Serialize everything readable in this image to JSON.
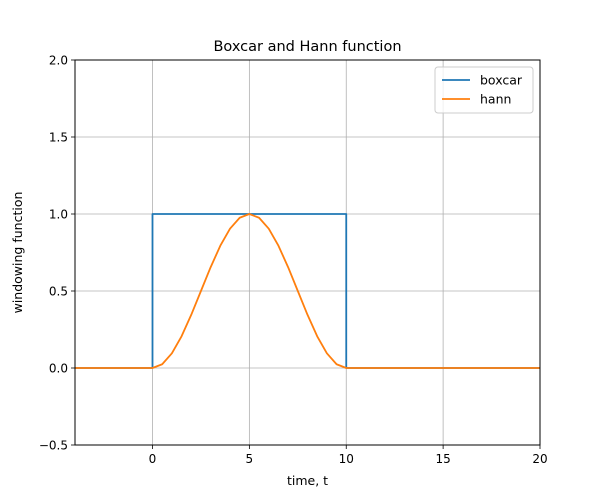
{
  "chart_data": {
    "type": "line",
    "title": "Boxcar and Hann function",
    "xlabel": "time, t",
    "ylabel": "windowing function",
    "xlim": [
      -4,
      20
    ],
    "ylim": [
      -0.5,
      2.0
    ],
    "xticks": [
      0,
      5,
      10,
      15,
      20
    ],
    "xtick_labels": [
      "0",
      "5",
      "10",
      "15",
      "20"
    ],
    "yticks": [
      -0.5,
      0.0,
      0.5,
      1.0,
      1.5,
      2.0
    ],
    "ytick_labels": [
      "−0.5",
      "0.0",
      "0.5",
      "1.0",
      "1.5",
      "2.0"
    ],
    "grid": true,
    "legend_position": "top-right",
    "series": [
      {
        "name": "boxcar",
        "color": "#1f77b4",
        "x": [
          -4,
          0,
          0,
          10,
          10,
          20
        ],
        "y": [
          0,
          0,
          1,
          1,
          0,
          0
        ]
      },
      {
        "name": "hann",
        "color": "#ff7f0e",
        "x": [
          -4,
          0,
          0.5,
          1,
          1.5,
          2,
          2.5,
          3,
          3.5,
          4,
          4.5,
          5,
          5.5,
          6,
          6.5,
          7,
          7.5,
          8,
          8.5,
          9,
          9.5,
          10,
          20
        ],
        "y": [
          0,
          0,
          0.0245,
          0.0955,
          0.2061,
          0.3455,
          0.5,
          0.6545,
          0.7939,
          0.9045,
          0.9755,
          1,
          0.9755,
          0.9045,
          0.7939,
          0.6545,
          0.5,
          0.3455,
          0.2061,
          0.0955,
          0.0245,
          0,
          0
        ]
      }
    ]
  }
}
